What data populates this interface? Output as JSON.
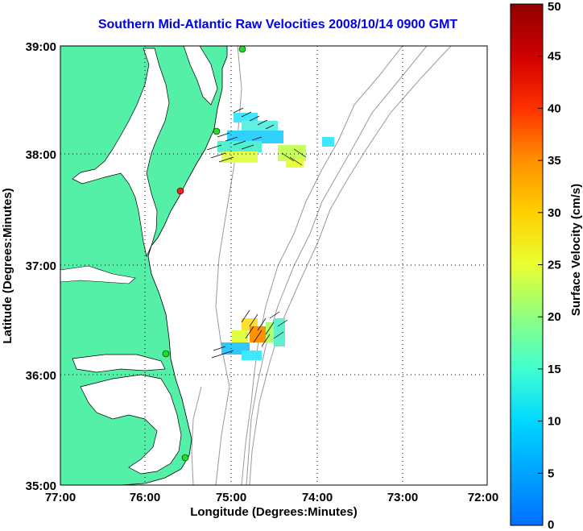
{
  "title": "Southern Mid-Atlantic Raw Velocities 2008/10/14 0900 GMT",
  "x_axis": {
    "label": "Longitude (Degrees:Minutes)",
    "ticks": [
      "77:00",
      "76:00",
      "75:00",
      "74:00",
      "73:00",
      "72:00"
    ]
  },
  "y_axis": {
    "label": "Latitude (Degrees:Minutes)",
    "ticks": [
      "39:00",
      "38:00",
      "37:00",
      "36:00",
      "35:00"
    ]
  },
  "colorbar": {
    "label": "Surface Velocity (cm/s)",
    "ticks": [
      "50",
      "45",
      "40",
      "35",
      "30",
      "25",
      "20",
      "15",
      "10",
      "5",
      "0"
    ],
    "range": [
      0,
      50
    ]
  },
  "colors": {
    "land": "#55f0a8",
    "contour": "#999999",
    "grid": "#000000",
    "title": "#0000ee",
    "station_green": "#22dd22",
    "station_red": "#ee2222"
  }
}
